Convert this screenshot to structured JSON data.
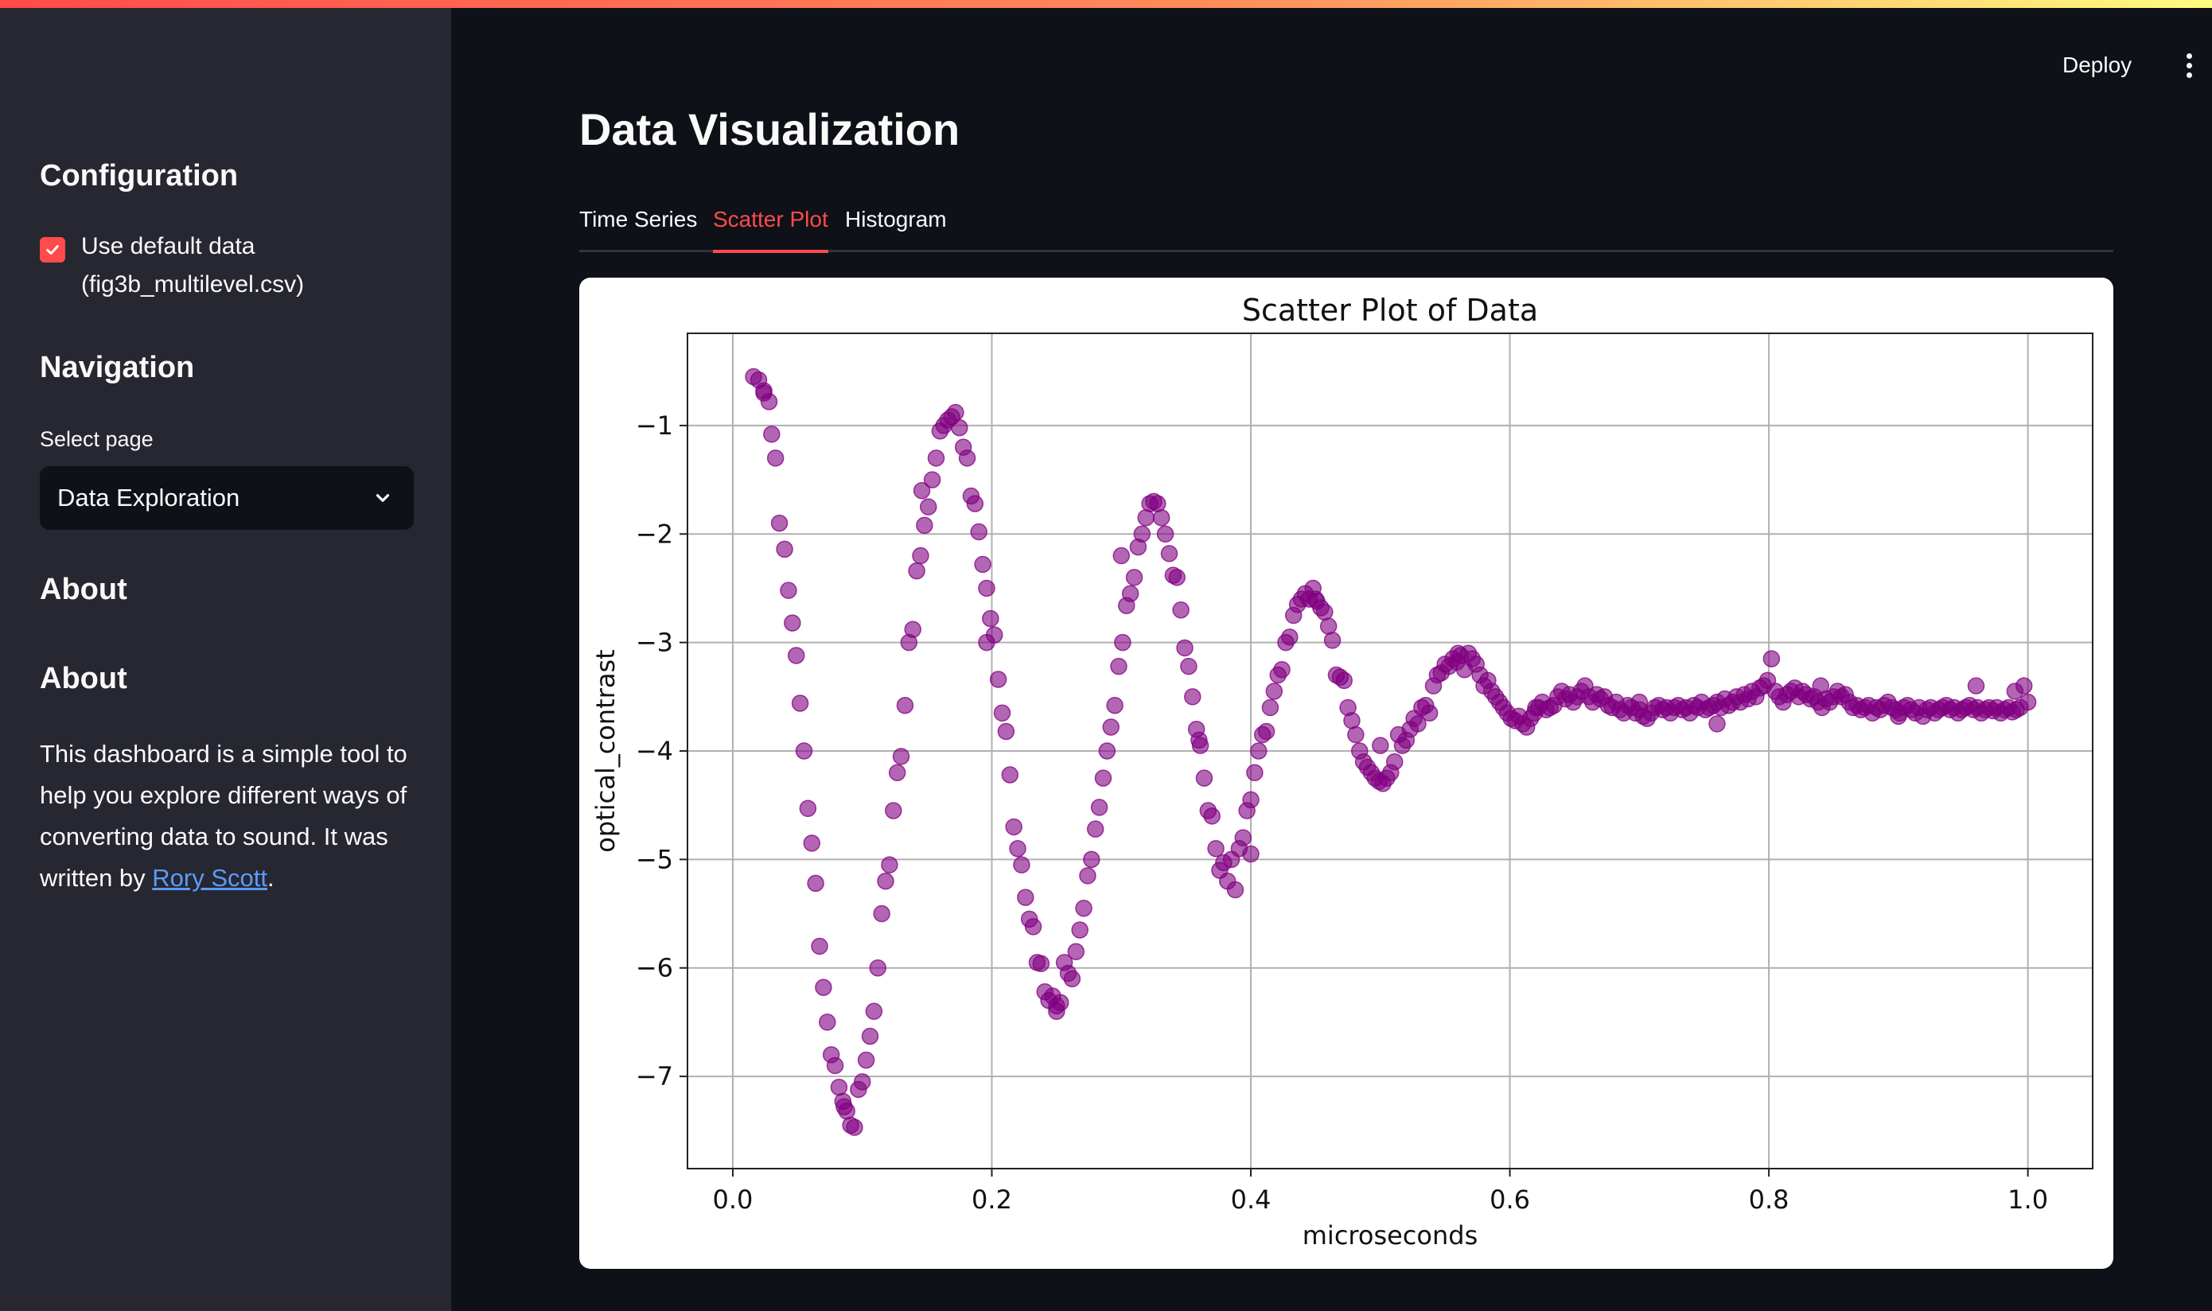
{
  "sidebar": {
    "config_heading": "Configuration",
    "use_default_label": "Use default data (fig3b_multilevel.csv)",
    "use_default_checked": true,
    "nav_heading": "Navigation",
    "select_label": "Select page",
    "select_value": "Data Exploration",
    "about_heading_1": "About",
    "about_heading_2": "About",
    "about_text": "This dashboard is a simple tool to help you explore different ways of converting data to sound. It was written by ",
    "about_link": "Rory Scott",
    "about_end": "."
  },
  "header": {
    "deploy_label": "Deploy",
    "menu_icon": "more-vertical-icon"
  },
  "main": {
    "title": "Data Visualization",
    "tabs": [
      {
        "label": "Time Series",
        "active": false
      },
      {
        "label": "Scatter Plot",
        "active": true
      },
      {
        "label": "Histogram",
        "active": false
      }
    ]
  },
  "colors": {
    "accent": "#ff4b4b",
    "link": "#5a9bff",
    "marker": "#800080"
  },
  "chart_data": {
    "type": "scatter",
    "title": "Scatter Plot of Data",
    "xlabel": "microseconds",
    "ylabel": "optical_contrast",
    "xlim": [
      -0.035,
      1.05
    ],
    "ylim": [
      -7.85,
      -0.15
    ],
    "xticks": [
      0.0,
      0.2,
      0.4,
      0.6,
      0.8,
      1.0
    ],
    "xtick_labels": [
      "0.0",
      "0.2",
      "0.4",
      "0.6",
      "0.8",
      "1.0"
    ],
    "yticks": [
      -1,
      -2,
      -3,
      -4,
      -5,
      -6,
      -7
    ],
    "ytick_labels": [
      "−1",
      "−2",
      "−3",
      "−4",
      "−5",
      "−6",
      "−7"
    ],
    "grid": true,
    "marker_color": "#800080",
    "points": [
      [
        0.016,
        -0.55
      ],
      [
        0.02,
        -0.58
      ],
      [
        0.024,
        -0.7
      ],
      [
        0.028,
        -0.78
      ],
      [
        0.03,
        -1.08
      ],
      [
        0.033,
        -1.3
      ],
      [
        0.036,
        -1.9
      ],
      [
        0.04,
        -2.14
      ],
      [
        0.043,
        -2.52
      ],
      [
        0.046,
        -2.82
      ],
      [
        0.049,
        -3.12
      ],
      [
        0.052,
        -3.56
      ],
      [
        0.055,
        -4.0
      ],
      [
        0.058,
        -4.53
      ],
      [
        0.061,
        -4.85
      ],
      [
        0.064,
        -5.22
      ],
      [
        0.067,
        -5.8
      ],
      [
        0.07,
        -6.18
      ],
      [
        0.073,
        -6.5
      ],
      [
        0.076,
        -6.8
      ],
      [
        0.079,
        -6.9
      ],
      [
        0.082,
        -7.1
      ],
      [
        0.085,
        -7.23
      ],
      [
        0.088,
        -7.32
      ],
      [
        0.091,
        -7.45
      ],
      [
        0.094,
        -7.47
      ],
      [
        0.097,
        -7.12
      ],
      [
        0.1,
        -7.05
      ],
      [
        0.103,
        -6.85
      ],
      [
        0.106,
        -6.63
      ],
      [
        0.109,
        -6.4
      ],
      [
        0.112,
        -6.0
      ],
      [
        0.115,
        -5.5
      ],
      [
        0.118,
        -5.2
      ],
      [
        0.121,
        -5.05
      ],
      [
        0.124,
        -4.55
      ],
      [
        0.127,
        -4.2
      ],
      [
        0.13,
        -4.05
      ],
      [
        0.133,
        -3.58
      ],
      [
        0.136,
        -3.0
      ],
      [
        0.139,
        -2.88
      ],
      [
        0.142,
        -2.34
      ],
      [
        0.145,
        -2.2
      ],
      [
        0.148,
        -1.92
      ],
      [
        0.151,
        -1.75
      ],
      [
        0.154,
        -1.5
      ],
      [
        0.157,
        -1.3
      ],
      [
        0.16,
        -1.05
      ],
      [
        0.163,
        -1.0
      ],
      [
        0.166,
        -0.95
      ],
      [
        0.169,
        -0.92
      ],
      [
        0.172,
        -0.88
      ],
      [
        0.175,
        -1.02
      ],
      [
        0.178,
        -1.2
      ],
      [
        0.181,
        -1.3
      ],
      [
        0.184,
        -1.65
      ],
      [
        0.187,
        -1.72
      ],
      [
        0.19,
        -1.98
      ],
      [
        0.193,
        -2.28
      ],
      [
        0.196,
        -2.5
      ],
      [
        0.199,
        -2.78
      ],
      [
        0.202,
        -2.93
      ],
      [
        0.205,
        -3.34
      ],
      [
        0.208,
        -3.65
      ],
      [
        0.211,
        -3.82
      ],
      [
        0.214,
        -4.22
      ],
      [
        0.217,
        -4.7
      ],
      [
        0.22,
        -4.9
      ],
      [
        0.223,
        -5.05
      ],
      [
        0.226,
        -5.35
      ],
      [
        0.229,
        -5.55
      ],
      [
        0.232,
        -5.62
      ],
      [
        0.235,
        -5.95
      ],
      [
        0.238,
        -5.96
      ],
      [
        0.241,
        -6.22
      ],
      [
        0.244,
        -6.3
      ],
      [
        0.247,
        -6.26
      ],
      [
        0.25,
        -6.4
      ],
      [
        0.253,
        -6.32
      ],
      [
        0.256,
        -5.95
      ],
      [
        0.259,
        -6.05
      ],
      [
        0.262,
        -6.1
      ],
      [
        0.265,
        -5.85
      ],
      [
        0.268,
        -5.65
      ],
      [
        0.271,
        -5.45
      ],
      [
        0.274,
        -5.15
      ],
      [
        0.277,
        -5.0
      ],
      [
        0.28,
        -4.72
      ],
      [
        0.283,
        -4.52
      ],
      [
        0.286,
        -4.25
      ],
      [
        0.289,
        -4.0
      ],
      [
        0.292,
        -3.78
      ],
      [
        0.295,
        -3.58
      ],
      [
        0.298,
        -3.22
      ],
      [
        0.301,
        -3.0
      ],
      [
        0.304,
        -2.66
      ],
      [
        0.307,
        -2.55
      ],
      [
        0.31,
        -2.4
      ],
      [
        0.313,
        -2.12
      ],
      [
        0.316,
        -2.0
      ],
      [
        0.319,
        -1.85
      ],
      [
        0.322,
        -1.72
      ],
      [
        0.325,
        -1.7
      ],
      [
        0.328,
        -1.72
      ],
      [
        0.331,
        -1.85
      ],
      [
        0.334,
        -2.0
      ],
      [
        0.337,
        -2.18
      ],
      [
        0.34,
        -2.38
      ],
      [
        0.343,
        -2.4
      ],
      [
        0.346,
        -2.7
      ],
      [
        0.349,
        -3.05
      ],
      [
        0.352,
        -3.22
      ],
      [
        0.355,
        -3.5
      ],
      [
        0.358,
        -3.8
      ],
      [
        0.361,
        -3.95
      ],
      [
        0.364,
        -4.25
      ],
      [
        0.367,
        -4.55
      ],
      [
        0.37,
        -4.6
      ],
      [
        0.373,
        -4.9
      ],
      [
        0.376,
        -5.1
      ],
      [
        0.379,
        -5.03
      ],
      [
        0.382,
        -5.2
      ],
      [
        0.385,
        -5.0
      ],
      [
        0.388,
        -5.28
      ],
      [
        0.391,
        -4.9
      ],
      [
        0.394,
        -4.8
      ],
      [
        0.397,
        -4.55
      ],
      [
        0.4,
        -4.45
      ],
      [
        0.403,
        -4.2
      ],
      [
        0.406,
        -4.0
      ],
      [
        0.409,
        -3.85
      ],
      [
        0.412,
        -3.82
      ],
      [
        0.415,
        -3.6
      ],
      [
        0.418,
        -3.45
      ],
      [
        0.421,
        -3.3
      ],
      [
        0.424,
        -3.25
      ],
      [
        0.427,
        -3.0
      ],
      [
        0.43,
        -2.95
      ],
      [
        0.433,
        -2.75
      ],
      [
        0.436,
        -2.65
      ],
      [
        0.439,
        -2.6
      ],
      [
        0.442,
        -2.55
      ],
      [
        0.445,
        -2.6
      ],
      [
        0.448,
        -2.5
      ],
      [
        0.451,
        -2.62
      ],
      [
        0.454,
        -2.68
      ],
      [
        0.457,
        -2.72
      ],
      [
        0.46,
        -2.85
      ],
      [
        0.463,
        -2.98
      ],
      [
        0.466,
        -3.3
      ],
      [
        0.469,
        -3.32
      ],
      [
        0.472,
        -3.35
      ],
      [
        0.475,
        -3.6
      ],
      [
        0.478,
        -3.72
      ],
      [
        0.481,
        -3.85
      ],
      [
        0.484,
        -4.0
      ],
      [
        0.487,
        -4.1
      ],
      [
        0.49,
        -4.15
      ],
      [
        0.493,
        -4.2
      ],
      [
        0.496,
        -4.25
      ],
      [
        0.499,
        -4.28
      ],
      [
        0.502,
        -4.3
      ],
      [
        0.505,
        -4.25
      ],
      [
        0.508,
        -4.2
      ],
      [
        0.511,
        -4.1
      ],
      [
        0.514,
        -3.85
      ],
      [
        0.517,
        -3.95
      ],
      [
        0.52,
        -3.9
      ],
      [
        0.523,
        -3.8
      ],
      [
        0.526,
        -3.7
      ],
      [
        0.529,
        -3.75
      ],
      [
        0.532,
        -3.6
      ],
      [
        0.535,
        -3.58
      ],
      [
        0.538,
        -3.65
      ],
      [
        0.541,
        -3.4
      ],
      [
        0.544,
        -3.3
      ],
      [
        0.547,
        -3.28
      ],
      [
        0.55,
        -3.2
      ],
      [
        0.553,
        -3.22
      ],
      [
        0.556,
        -3.15
      ],
      [
        0.559,
        -3.18
      ],
      [
        0.562,
        -3.12
      ],
      [
        0.565,
        -3.25
      ],
      [
        0.568,
        -3.1
      ],
      [
        0.571,
        -3.15
      ],
      [
        0.574,
        -3.2
      ],
      [
        0.577,
        -3.3
      ],
      [
        0.58,
        -3.4
      ],
      [
        0.583,
        -3.35
      ],
      [
        0.586,
        -3.45
      ],
      [
        0.589,
        -3.5
      ],
      [
        0.592,
        -3.55
      ],
      [
        0.595,
        -3.6
      ],
      [
        0.598,
        -3.65
      ],
      [
        0.601,
        -3.7
      ],
      [
        0.604,
        -3.72
      ],
      [
        0.607,
        -3.68
      ],
      [
        0.61,
        -3.75
      ],
      [
        0.613,
        -3.78
      ],
      [
        0.616,
        -3.7
      ],
      [
        0.619,
        -3.65
      ],
      [
        0.622,
        -3.6
      ],
      [
        0.625,
        -3.55
      ],
      [
        0.628,
        -3.62
      ],
      [
        0.631,
        -3.6
      ],
      [
        0.634,
        -3.58
      ],
      [
        0.637,
        -3.5
      ],
      [
        0.64,
        -3.45
      ],
      [
        0.643,
        -3.52
      ],
      [
        0.646,
        -3.48
      ],
      [
        0.649,
        -3.55
      ],
      [
        0.652,
        -3.5
      ],
      [
        0.655,
        -3.45
      ],
      [
        0.658,
        -3.4
      ],
      [
        0.661,
        -3.5
      ],
      [
        0.664,
        -3.55
      ],
      [
        0.667,
        -3.48
      ],
      [
        0.67,
        -3.52
      ],
      [
        0.673,
        -3.5
      ],
      [
        0.676,
        -3.58
      ],
      [
        0.679,
        -3.6
      ],
      [
        0.682,
        -3.55
      ],
      [
        0.685,
        -3.62
      ],
      [
        0.688,
        -3.65
      ],
      [
        0.691,
        -3.58
      ],
      [
        0.694,
        -3.6
      ],
      [
        0.697,
        -3.65
      ],
      [
        0.7,
        -3.62
      ],
      [
        0.703,
        -3.68
      ],
      [
        0.706,
        -3.7
      ],
      [
        0.709,
        -3.65
      ],
      [
        0.712,
        -3.6
      ],
      [
        0.715,
        -3.58
      ],
      [
        0.718,
        -3.62
      ],
      [
        0.721,
        -3.6
      ],
      [
        0.724,
        -3.65
      ],
      [
        0.727,
        -3.6
      ],
      [
        0.73,
        -3.58
      ],
      [
        0.733,
        -3.62
      ],
      [
        0.736,
        -3.6
      ],
      [
        0.739,
        -3.65
      ],
      [
        0.742,
        -3.58
      ],
      [
        0.745,
        -3.6
      ],
      [
        0.748,
        -3.55
      ],
      [
        0.751,
        -3.62
      ],
      [
        0.754,
        -3.6
      ],
      [
        0.757,
        -3.58
      ],
      [
        0.76,
        -3.55
      ],
      [
        0.763,
        -3.6
      ],
      [
        0.766,
        -3.52
      ],
      [
        0.769,
        -3.58
      ],
      [
        0.772,
        -3.55
      ],
      [
        0.775,
        -3.5
      ],
      [
        0.778,
        -3.55
      ],
      [
        0.781,
        -3.48
      ],
      [
        0.784,
        -3.52
      ],
      [
        0.787,
        -3.45
      ],
      [
        0.79,
        -3.5
      ],
      [
        0.793,
        -3.42
      ],
      [
        0.796,
        -3.4
      ],
      [
        0.799,
        -3.35
      ],
      [
        0.802,
        -3.15
      ],
      [
        0.805,
        -3.45
      ],
      [
        0.808,
        -3.5
      ],
      [
        0.811,
        -3.55
      ],
      [
        0.814,
        -3.48
      ],
      [
        0.817,
        -3.45
      ],
      [
        0.82,
        -3.42
      ],
      [
        0.823,
        -3.5
      ],
      [
        0.826,
        -3.45
      ],
      [
        0.829,
        -3.48
      ],
      [
        0.832,
        -3.52
      ],
      [
        0.835,
        -3.5
      ],
      [
        0.838,
        -3.55
      ],
      [
        0.841,
        -3.6
      ],
      [
        0.844,
        -3.52
      ],
      [
        0.847,
        -3.55
      ],
      [
        0.85,
        -3.5
      ],
      [
        0.853,
        -3.45
      ],
      [
        0.856,
        -3.5
      ],
      [
        0.859,
        -3.48
      ],
      [
        0.862,
        -3.55
      ],
      [
        0.865,
        -3.6
      ],
      [
        0.868,
        -3.58
      ],
      [
        0.871,
        -3.62
      ],
      [
        0.874,
        -3.6
      ],
      [
        0.877,
        -3.58
      ],
      [
        0.88,
        -3.65
      ],
      [
        0.883,
        -3.6
      ],
      [
        0.886,
        -3.62
      ],
      [
        0.889,
        -3.58
      ],
      [
        0.892,
        -3.55
      ],
      [
        0.895,
        -3.6
      ],
      [
        0.898,
        -3.62
      ],
      [
        0.901,
        -3.65
      ],
      [
        0.904,
        -3.6
      ],
      [
        0.907,
        -3.58
      ],
      [
        0.91,
        -3.62
      ],
      [
        0.913,
        -3.65
      ],
      [
        0.916,
        -3.6
      ],
      [
        0.919,
        -3.68
      ],
      [
        0.922,
        -3.62
      ],
      [
        0.925,
        -3.6
      ],
      [
        0.928,
        -3.65
      ],
      [
        0.931,
        -3.62
      ],
      [
        0.934,
        -3.6
      ],
      [
        0.937,
        -3.58
      ],
      [
        0.94,
        -3.62
      ],
      [
        0.943,
        -3.6
      ],
      [
        0.946,
        -3.65
      ],
      [
        0.949,
        -3.62
      ],
      [
        0.952,
        -3.6
      ],
      [
        0.955,
        -3.58
      ],
      [
        0.958,
        -3.62
      ],
      [
        0.961,
        -3.6
      ],
      [
        0.964,
        -3.65
      ],
      [
        0.967,
        -3.62
      ],
      [
        0.97,
        -3.6
      ],
      [
        0.973,
        -3.63
      ],
      [
        0.976,
        -3.6
      ],
      [
        0.979,
        -3.65
      ],
      [
        0.982,
        -3.62
      ],
      [
        0.985,
        -3.6
      ],
      [
        0.988,
        -3.64
      ],
      [
        0.991,
        -3.62
      ],
      [
        0.994,
        -3.6
      ],
      [
        0.997,
        -3.4
      ],
      [
        1.0,
        -3.55
      ],
      [
        0.024,
        -0.68
      ],
      [
        0.086,
        -7.28
      ],
      [
        0.146,
        -1.6
      ],
      [
        0.196,
        -3.0
      ],
      [
        0.25,
        -6.35
      ],
      [
        0.3,
        -2.2
      ],
      [
        0.36,
        -3.9
      ],
      [
        0.4,
        -4.95
      ],
      [
        0.45,
        -2.6
      ],
      [
        0.5,
        -3.95
      ],
      [
        0.56,
        -3.1
      ],
      [
        0.62,
        -3.6
      ],
      [
        0.7,
        -3.55
      ],
      [
        0.76,
        -3.75
      ],
      [
        0.84,
        -3.4
      ],
      [
        0.9,
        -3.68
      ],
      [
        0.96,
        -3.4
      ],
      [
        0.99,
        -3.45
      ]
    ]
  }
}
